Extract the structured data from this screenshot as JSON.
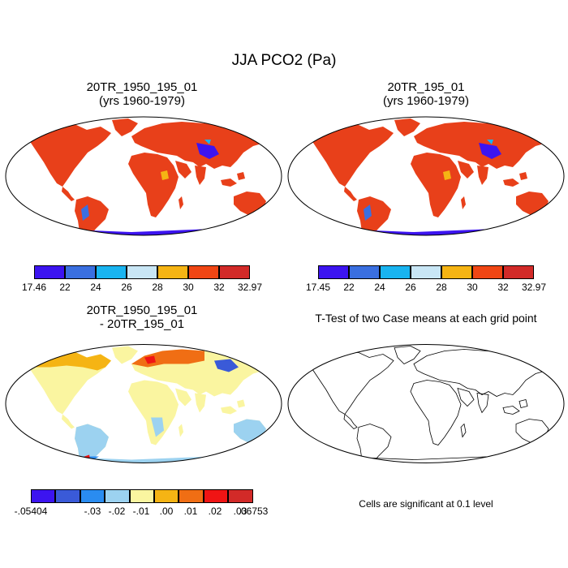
{
  "figure": {
    "title": "JJA PCO2 (Pa)"
  },
  "panels": [
    {
      "id": "p1",
      "title1": "20TR_1950_195_01",
      "title2": "(yrs 1960-1979)"
    },
    {
      "id": "p2",
      "title1": "20TR_195_01",
      "title2": "(yrs 1960-1979)"
    },
    {
      "id": "p3",
      "title1": "20TR_1950_195_01",
      "title2": "- 20TR_195_01"
    },
    {
      "id": "p4",
      "title1": "T-Test of two Case means at each grid point",
      "title2": ""
    }
  ],
  "colorbars": [
    {
      "labels": [
        "17.46",
        "22",
        "24",
        "26",
        "28",
        "30",
        "32",
        "32.97"
      ],
      "colors": [
        "#3c14f0",
        "#3a6fe0",
        "#19b4f0",
        "#c8e6f5",
        "#f5b414",
        "#f04614",
        "#d22a28"
      ]
    },
    {
      "labels": [
        "17.45",
        "22",
        "24",
        "26",
        "28",
        "30",
        "32",
        "32.97"
      ],
      "colors": [
        "#3c14f0",
        "#3a6fe0",
        "#19b4f0",
        "#c8e6f5",
        "#f5b414",
        "#f04614",
        "#d22a28"
      ]
    },
    {
      "labels": [
        "-.05404",
        "-.03",
        "-.02",
        "-.01",
        ".00",
        ".01",
        ".02",
        ".03",
        ".06753"
      ],
      "colors": [
        "#3c14f0",
        "#3a5ad8",
        "#2a8cf0",
        "#9cd2f0",
        "#faf5a0",
        "#f5b414",
        "#f06e14",
        "#f01414",
        "#d22a28"
      ]
    }
  ],
  "significance_note": "Cells are significant at 0.1 level"
}
